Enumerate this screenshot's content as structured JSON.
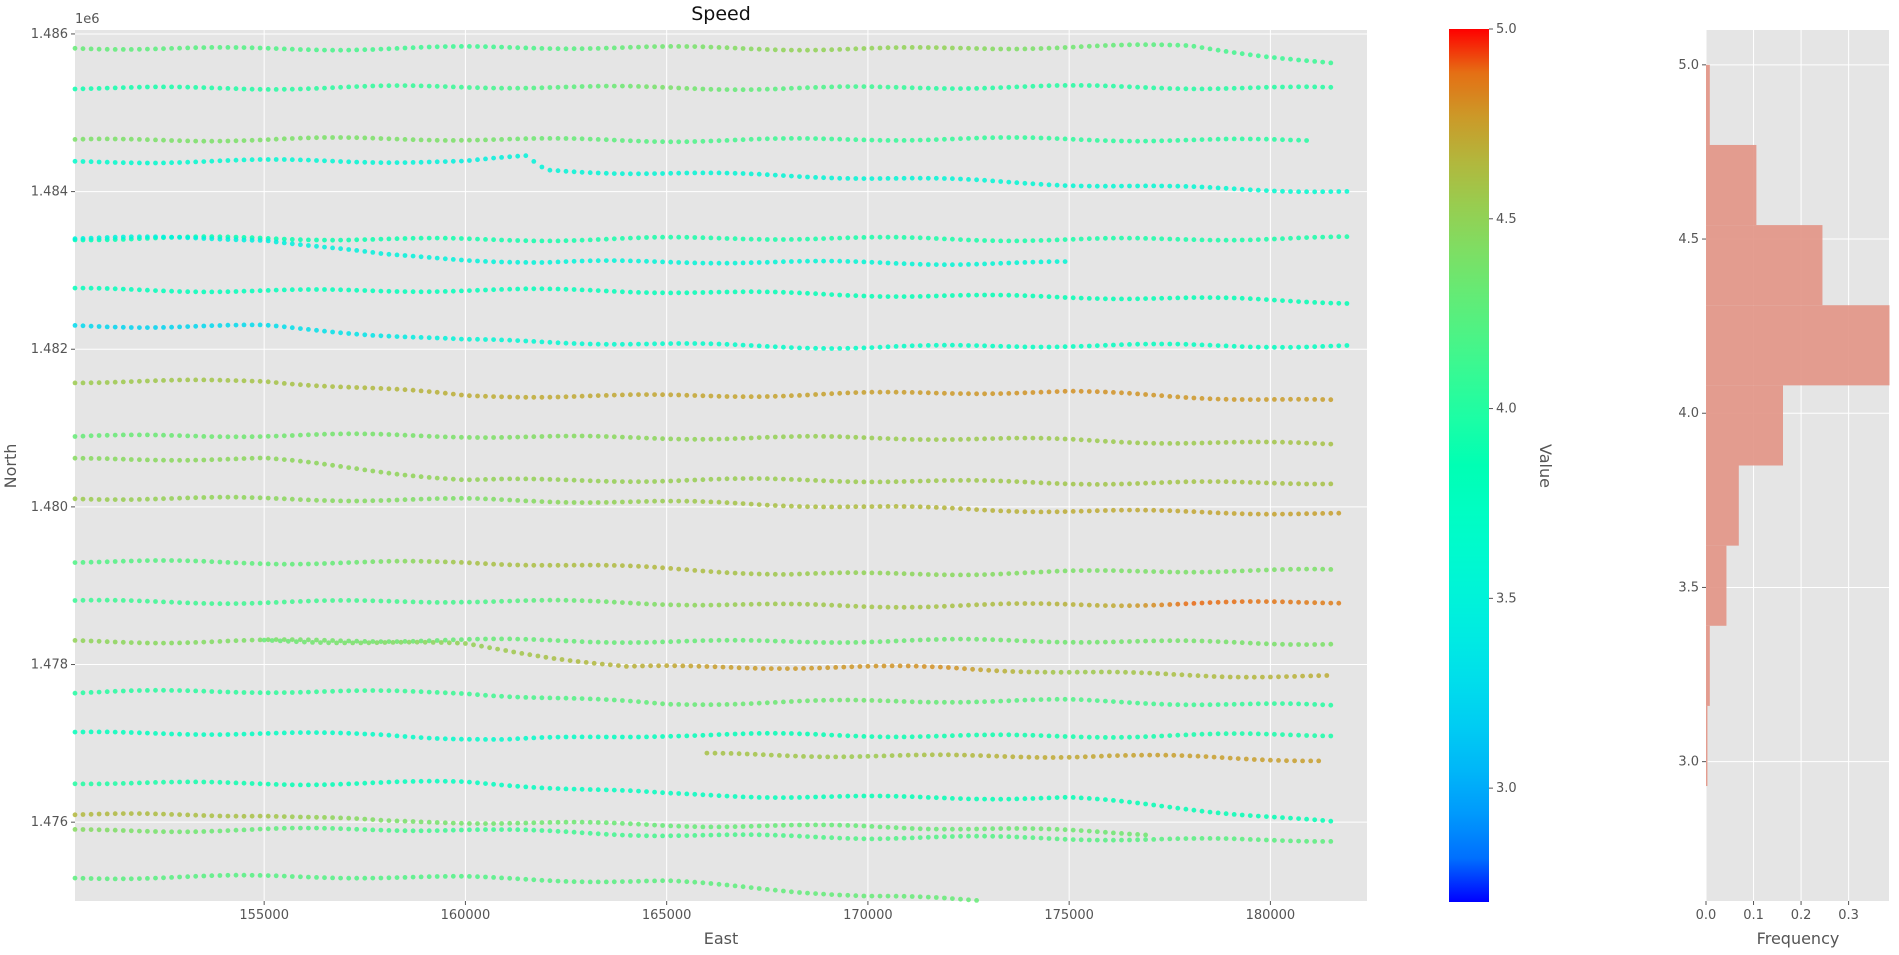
{
  "chart_data": [
    {
      "type": "scatter",
      "title": "Speed",
      "xlabel": "East",
      "ylabel": "North",
      "xlim": [
        150300,
        182400
      ],
      "ylim": [
        1475000,
        1486050
      ],
      "y_offset_label": "1e6",
      "xticks": [
        155000,
        160000,
        165000,
        170000,
        175000,
        180000
      ],
      "xtick_labels": [
        "155000",
        "160000",
        "165000",
        "170000",
        "175000",
        "180000"
      ],
      "yticks": [
        1476000,
        1478000,
        1480000,
        1482000,
        1484000,
        1486000
      ],
      "ytick_labels": [
        "1.476",
        "1.478",
        "1.480",
        "1.482",
        "1.484",
        "1.486"
      ],
      "grid": true,
      "color_field": "Value",
      "colormap": "rainbow",
      "tracks": [
        {
          "y": 1486020,
          "x0": 150300,
          "x1": 181600,
          "k": [
            [
              150300,
              4.3
            ],
            [
              160000,
              4.1
            ],
            [
              168000,
              4.5
            ],
            [
              172000,
              4.5
            ],
            [
              176000,
              4.3
            ],
            [
              180000,
              4.1
            ]
          ],
          "w": [
            [
              172000,
              -200
            ],
            [
              178000,
              -180
            ],
            [
              181600,
              -400
            ]
          ]
        },
        {
          "y": 1485400,
          "x0": 150300,
          "x1": 181600,
          "k": [
            [
              150300,
              3.9
            ],
            [
              160000,
              4.1
            ],
            [
              165000,
              4.4
            ],
            [
              172000,
              4.0
            ],
            [
              181600,
              4.0
            ]
          ],
          "w": [
            [
              181600,
              -80
            ]
          ]
        },
        {
          "y": 1484900,
          "x0": 150300,
          "x1": 181000,
          "k": [
            [
              150300,
              4.4
            ],
            [
              160000,
              4.4
            ],
            [
              168000,
              4.1
            ],
            [
              181000,
              4.0
            ]
          ],
          "w": [
            [
              181000,
              -240
            ]
          ]
        },
        {
          "y": 1484550,
          "x0": 150300,
          "x1": 182000,
          "k": [
            [
              150300,
              3.65
            ],
            [
              158000,
              3.55
            ],
            [
              160000,
              3.45
            ],
            [
              163000,
              3.55
            ],
            [
              172000,
              3.55
            ],
            [
              180000,
              3.6
            ],
            [
              182000,
              3.6
            ]
          ],
          "w": [
            [
              160000,
              -170
            ],
            [
              161500,
              -100
            ],
            [
              162000,
              -270
            ],
            [
              182000,
              -550
            ]
          ]
        },
        {
          "y": 1483800,
          "x0": 150300,
          "x1": 182000,
          "k": [
            [
              150300,
              3.85
            ],
            [
              165000,
              3.95
            ],
            [
              182000,
              3.95
            ]
          ],
          "w": [
            [
              182000,
              -400
            ]
          ]
        },
        {
          "y": 1483600,
          "x0": 150300,
          "x1": 175000,
          "k": [
            [
              150300,
              3.5
            ],
            [
              155000,
              3.45
            ],
            [
              160000,
              3.5
            ],
            [
              170000,
              3.55
            ],
            [
              175000,
              3.55
            ]
          ],
          "w": [
            [
              155000,
              -200
            ],
            [
              158000,
              -400
            ],
            [
              162000,
              -500
            ],
            [
              175000,
              -500
            ]
          ]
        },
        {
          "y": 1483150,
          "x0": 150300,
          "x1": 182000,
          "k": [
            [
              150300,
              3.8
            ],
            [
              160000,
              3.8
            ],
            [
              170000,
              3.85
            ],
            [
              182000,
              3.85
            ]
          ],
          "w": [
            [
              160000,
              -400
            ],
            [
              170000,
              -450
            ],
            [
              182000,
              -550
            ]
          ]
        },
        {
          "y": 1482500,
          "x0": 150300,
          "x1": 182000,
          "k": [
            [
              150300,
              3.25
            ],
            [
              152000,
              3.2
            ],
            [
              156000,
              3.3
            ],
            [
              158000,
              3.35
            ],
            [
              160000,
              3.55
            ],
            [
              165000,
              3.65
            ],
            [
              175000,
              3.75
            ],
            [
              182000,
              3.75
            ]
          ],
          "w": [
            [
              155000,
              -200
            ],
            [
              160000,
              -400
            ],
            [
              170000,
              -470
            ],
            [
              182000,
              -450
            ]
          ]
        },
        {
          "y": 1481800,
          "x0": 150300,
          "x1": 181500,
          "k": [
            [
              150300,
              4.55
            ],
            [
              156000,
              4.6
            ],
            [
              160000,
              4.7
            ],
            [
              170000,
              4.75
            ],
            [
              175000,
              4.8
            ],
            [
              181500,
              4.75
            ]
          ],
          "w": [
            [
              155000,
              -200
            ],
            [
              160000,
              -400
            ],
            [
              175000,
              -350
            ],
            [
              181500,
              -450
            ]
          ]
        },
        {
          "y": 1481300,
          "x0": 150300,
          "x1": 181500,
          "k": [
            [
              150300,
              4.3
            ],
            [
              160000,
              4.4
            ],
            [
              166000,
              4.5
            ],
            [
              172000,
              4.55
            ],
            [
              178000,
              4.55
            ],
            [
              181500,
              4.6
            ]
          ],
          "w": [
            [
              160000,
              -400
            ],
            [
              175000,
              -450
            ],
            [
              181500,
              -500
            ]
          ]
        },
        {
          "y": 1480700,
          "x0": 150300,
          "x1": 181500,
          "k": [
            [
              150300,
              4.45
            ],
            [
              160000,
              4.5
            ],
            [
              170000,
              4.55
            ],
            [
              181500,
              4.6
            ]
          ],
          "w": [
            [
              155000,
              -100
            ],
            [
              160000,
              -350
            ],
            [
              181500,
              -400
            ]
          ]
        },
        {
          "y": 1480250,
          "x0": 150300,
          "x1": 181700,
          "k": [
            [
              150300,
              4.55
            ],
            [
              160000,
              4.4
            ],
            [
              167000,
              4.6
            ],
            [
              175000,
              4.7
            ],
            [
              181700,
              4.75
            ]
          ],
          "w": [
            [
              160000,
              -150
            ],
            [
              170000,
              -250
            ],
            [
              181700,
              -350
            ]
          ]
        },
        {
          "y": 1479650,
          "x0": 150300,
          "x1": 181500,
          "k": [
            [
              150300,
              4.2
            ],
            [
              157000,
              4.3
            ],
            [
              160000,
              4.6
            ],
            [
              165000,
              4.65
            ],
            [
              170000,
              4.5
            ],
            [
              175000,
              4.4
            ],
            [
              181500,
              4.4
            ]
          ],
          "w": [
            [
              160000,
              -350
            ],
            [
              168000,
              -500
            ],
            [
              181500,
              -460
            ]
          ]
        },
        {
          "y": 1479050,
          "x0": 150300,
          "x1": 181700,
          "k": [
            [
              150300,
              4.1
            ],
            [
              160000,
              4.15
            ],
            [
              167000,
              4.55
            ],
            [
              172000,
              4.6
            ],
            [
              176000,
              4.7
            ],
            [
              178000,
              4.9
            ],
            [
              181700,
              4.85
            ]
          ],
          "w": [
            [
              160000,
              -250
            ],
            [
              170000,
              -300
            ],
            [
              176000,
              -300
            ],
            [
              181700,
              -250
            ]
          ]
        },
        {
          "y": 1478400,
          "x0": 150300,
          "x1": 181500,
          "k": [
            [
              150300,
              4.5
            ],
            [
              160000,
              4.3
            ],
            [
              168000,
              4.3
            ],
            [
              181500,
              4.4
            ]
          ],
          "w": [
            [
              160000,
              -100
            ],
            [
              170000,
              -100
            ],
            [
              181500,
              -120
            ]
          ]
        },
        {
          "y": 1478400,
          "x0": 155000,
          "x1": 181500,
          "k": [
            [
              155000,
              4.3
            ],
            [
              162000,
              4.6
            ],
            [
              166000,
              4.75
            ],
            [
              172000,
              4.8
            ],
            [
              175000,
              4.55
            ],
            [
              181500,
              4.7
            ]
          ],
          "w": [
            [
              155000,
              -100
            ],
            [
              160000,
              -150
            ],
            [
              164000,
              -420
            ],
            [
              172000,
              -450
            ],
            [
              175000,
              -500
            ],
            [
              181500,
              -550
            ]
          ]
        },
        {
          "y": 1477900,
          "x0": 150300,
          "x1": 181500,
          "k": [
            [
              150300,
              4.0
            ],
            [
              160000,
              4.1
            ],
            [
              165000,
              4.3
            ],
            [
              170000,
              4.35
            ],
            [
              175000,
              4.2
            ],
            [
              181500,
              4.0
            ]
          ],
          "w": [
            [
              160000,
              -250
            ],
            [
              165000,
              -400
            ],
            [
              175000,
              -350
            ],
            [
              181500,
              -430
            ]
          ]
        },
        {
          "y": 1477400,
          "x0": 150300,
          "x1": 181500,
          "k": [
            [
              150300,
              3.8
            ],
            [
              158000,
              3.7
            ],
            [
              161000,
              3.65
            ],
            [
              165000,
              3.8
            ],
            [
              172000,
              3.9
            ],
            [
              181500,
              3.95
            ]
          ],
          "w": [
            [
              158000,
              -280
            ],
            [
              161000,
              -350
            ],
            [
              165000,
              -300
            ],
            [
              181500,
              -300
            ]
          ]
        },
        {
          "y": 1477350,
          "x0": 166000,
          "x1": 181300,
          "k": [
            [
              166000,
              4.6
            ],
            [
              170000,
              4.55
            ],
            [
              174000,
              4.7
            ],
            [
              177000,
              4.75
            ],
            [
              181300,
              4.75
            ]
          ],
          "w": [
            [
              170000,
              -500
            ],
            [
              176000,
              -510
            ],
            [
              181300,
              -570
            ]
          ]
        },
        {
          "y": 1476800,
          "x0": 150300,
          "x1": 181500,
          "k": [
            [
              150300,
              4.0
            ],
            [
              160000,
              3.75
            ],
            [
              165000,
              3.75
            ],
            [
              170000,
              3.85
            ],
            [
              175000,
              3.85
            ],
            [
              181500,
              3.85
            ]
          ],
          "w": [
            [
              160000,
              -300
            ],
            [
              165000,
              -450
            ],
            [
              175000,
              -500
            ],
            [
              181500,
              -800
            ]
          ]
        },
        {
          "y": 1476250,
          "x0": 150300,
          "x1": 177000,
          "k": [
            [
              150300,
              4.65
            ],
            [
              155000,
              4.6
            ],
            [
              158000,
              4.4
            ],
            [
              165000,
              4.3
            ],
            [
              170000,
              4.3
            ],
            [
              177000,
              4.35
            ]
          ],
          "w": [
            [
              155000,
              -150
            ],
            [
              158000,
              -250
            ],
            [
              170000,
              -300
            ],
            [
              177000,
              -400
            ]
          ]
        },
        {
          "y": 1475900,
          "x0": 150300,
          "x1": 181500,
          "k": [
            [
              150300,
              4.45
            ],
            [
              160000,
              4.1
            ],
            [
              170000,
              4.2
            ],
            [
              181500,
              4.25
            ]
          ],
          "w": [
            [
              160000,
              0
            ],
            [
              170000,
              -100
            ],
            [
              181500,
              -120
            ]
          ]
        },
        {
          "y": 1475400,
          "x0": 150300,
          "x1": 175800,
          "k": [
            [
              150300,
              4.25
            ],
            [
              160000,
              4.2
            ],
            [
              170000,
              4.3
            ],
            [
              175800,
              4.3
            ]
          ],
          "w": [
            [
              160000,
              -100
            ],
            [
              165000,
              -150
            ],
            [
              170000,
              -350
            ],
            [
              175800,
              -450
            ]
          ]
        }
      ]
    },
    {
      "type": "colorbar",
      "label": "Value",
      "colormap": "rainbow",
      "range": [
        2.7,
        5.0
      ],
      "ticks": [
        3.0,
        3.5,
        4.0,
        4.5,
        5.0
      ],
      "tick_labels": [
        "3.0",
        "3.5",
        "4.0",
        "4.5",
        "5.0"
      ]
    },
    {
      "type": "bar",
      "orientation": "horizontal",
      "xlabel": "Frequency",
      "xlim": [
        0,
        0.385
      ],
      "ylim": [
        2.6,
        5.1
      ],
      "bin_edges": [
        2.93,
        3.16,
        3.39,
        3.62,
        3.85,
        4.08,
        4.31,
        4.54,
        4.77,
        5.0
      ],
      "values": [
        0.003,
        0.008,
        0.043,
        0.069,
        0.162,
        0.386,
        0.245,
        0.106,
        0.008
      ],
      "bar_color": "#e29485",
      "xticks": [
        0.0,
        0.1,
        0.2,
        0.3
      ],
      "xtick_labels": [
        "0.0",
        "0.1",
        "0.2",
        "0.3"
      ],
      "yticks": [
        3.0,
        3.5,
        4.0,
        4.5,
        5.0
      ],
      "ytick_labels": [
        "3.0",
        "3.5",
        "4.0",
        "4.5",
        "5.0"
      ],
      "grid": true
    }
  ]
}
